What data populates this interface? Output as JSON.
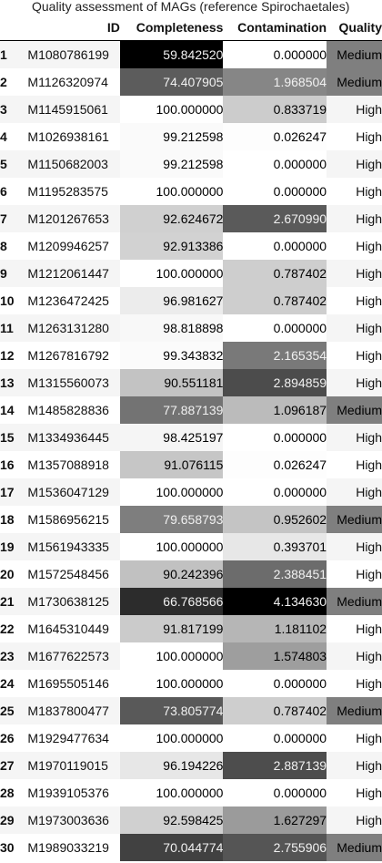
{
  "caption": "Quality assessment of MAGs (reference Spirochaetales)",
  "columns": {
    "index": "",
    "id": "ID",
    "completeness": "Completeness",
    "contamination": "Contamination",
    "quality": "Quality"
  },
  "colors": {
    "medium_bg": "#7f7f7f",
    "high_bg": "transparent",
    "row_stripe": "#f5f5f5"
  },
  "rows": [
    {
      "idx": "1",
      "id": "M1080786199",
      "completeness": "59.842520",
      "contamination": "0.000000",
      "quality": "Medium"
    },
    {
      "idx": "2",
      "id": "M1126320974",
      "completeness": "74.407905",
      "contamination": "1.968504",
      "quality": "Medium"
    },
    {
      "idx": "3",
      "id": "M1145915061",
      "completeness": "100.000000",
      "contamination": "0.833719",
      "quality": "High"
    },
    {
      "idx": "4",
      "id": "M1026938161",
      "completeness": "99.212598",
      "contamination": "0.026247",
      "quality": "High"
    },
    {
      "idx": "5",
      "id": "M1150682003",
      "completeness": "99.212598",
      "contamination": "0.000000",
      "quality": "High"
    },
    {
      "idx": "6",
      "id": "M1195283575",
      "completeness": "100.000000",
      "contamination": "0.000000",
      "quality": "High"
    },
    {
      "idx": "7",
      "id": "M1201267653",
      "completeness": "92.624672",
      "contamination": "2.670990",
      "quality": "High"
    },
    {
      "idx": "8",
      "id": "M1209946257",
      "completeness": "92.913386",
      "contamination": "0.000000",
      "quality": "High"
    },
    {
      "idx": "9",
      "id": "M1212061447",
      "completeness": "100.000000",
      "contamination": "0.787402",
      "quality": "High"
    },
    {
      "idx": "10",
      "id": "M1236472425",
      "completeness": "96.981627",
      "contamination": "0.787402",
      "quality": "High"
    },
    {
      "idx": "11",
      "id": "M1263131280",
      "completeness": "98.818898",
      "contamination": "0.000000",
      "quality": "High"
    },
    {
      "idx": "12",
      "id": "M1267816792",
      "completeness": "99.343832",
      "contamination": "2.165354",
      "quality": "High"
    },
    {
      "idx": "13",
      "id": "M1315560073",
      "completeness": "90.551181",
      "contamination": "2.894859",
      "quality": "High"
    },
    {
      "idx": "14",
      "id": "M1485828836",
      "completeness": "77.887139",
      "contamination": "1.096187",
      "quality": "Medium"
    },
    {
      "idx": "15",
      "id": "M1334936445",
      "completeness": "98.425197",
      "contamination": "0.000000",
      "quality": "High"
    },
    {
      "idx": "16",
      "id": "M1357088918",
      "completeness": "91.076115",
      "contamination": "0.026247",
      "quality": "High"
    },
    {
      "idx": "17",
      "id": "M1536047129",
      "completeness": "100.000000",
      "contamination": "0.000000",
      "quality": "High"
    },
    {
      "idx": "18",
      "id": "M1586956215",
      "completeness": "79.658793",
      "contamination": "0.952602",
      "quality": "Medium"
    },
    {
      "idx": "19",
      "id": "M1561943335",
      "completeness": "100.000000",
      "contamination": "0.393701",
      "quality": "High"
    },
    {
      "idx": "20",
      "id": "M1572548456",
      "completeness": "90.242396",
      "contamination": "2.388451",
      "quality": "High"
    },
    {
      "idx": "21",
      "id": "M1730638125",
      "completeness": "66.768566",
      "contamination": "4.134630",
      "quality": "Medium"
    },
    {
      "idx": "22",
      "id": "M1645310449",
      "completeness": "91.817199",
      "contamination": "1.181102",
      "quality": "High"
    },
    {
      "idx": "23",
      "id": "M1677622573",
      "completeness": "100.000000",
      "contamination": "1.574803",
      "quality": "High"
    },
    {
      "idx": "24",
      "id": "M1695505146",
      "completeness": "100.000000",
      "contamination": "0.000000",
      "quality": "High"
    },
    {
      "idx": "25",
      "id": "M1837800477",
      "completeness": "73.805774",
      "contamination": "0.787402",
      "quality": "Medium"
    },
    {
      "idx": "26",
      "id": "M1929477634",
      "completeness": "100.000000",
      "contamination": "0.000000",
      "quality": "High"
    },
    {
      "idx": "27",
      "id": "M1970119015",
      "completeness": "96.194226",
      "contamination": "2.887139",
      "quality": "High"
    },
    {
      "idx": "28",
      "id": "M1939105376",
      "completeness": "100.000000",
      "contamination": "0.000000",
      "quality": "High"
    },
    {
      "idx": "29",
      "id": "M1973003636",
      "completeness": "92.598425",
      "contamination": "1.627297",
      "quality": "High"
    },
    {
      "idx": "30",
      "id": "M1989033219",
      "completeness": "70.044774",
      "contamination": "2.755906",
      "quality": "Medium"
    }
  ]
}
